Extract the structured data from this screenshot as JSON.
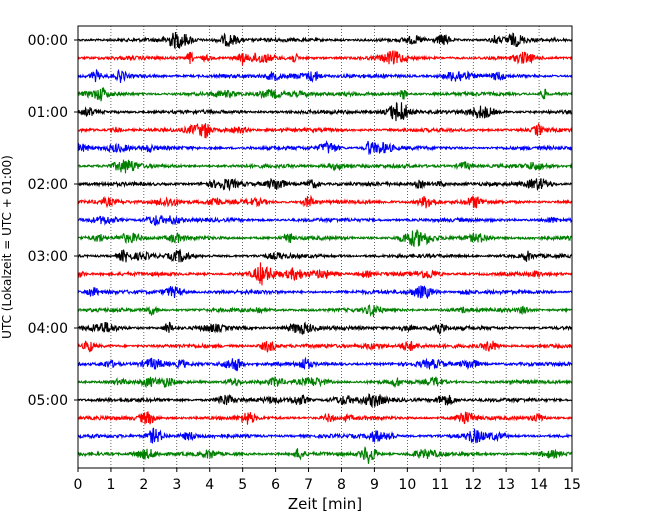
{
  "chart_data": {
    "type": "line",
    "title": "",
    "xlabel": "Zeit  [min]",
    "ylabel": "UTC (Lokalzeit = UTC + 01:00)",
    "xlim": [
      0,
      15
    ],
    "x_ticks": [
      "0",
      "1",
      "2",
      "3",
      "4",
      "5",
      "6",
      "7",
      "8",
      "9",
      "10",
      "11",
      "12",
      "13",
      "14",
      "15"
    ],
    "y_ticks": [
      {
        "label": "00:00",
        "row": 0
      },
      {
        "label": "01:00",
        "row": 4
      },
      {
        "label": "02:00",
        "row": 8
      },
      {
        "label": "03:00",
        "row": 12
      },
      {
        "label": "04:00",
        "row": 16
      },
      {
        "label": "05:00",
        "row": 20
      }
    ],
    "rows_per_hour": 4,
    "row_count": 24,
    "row_duration_min": 15,
    "color_cycle": [
      "#000000",
      "#ff0000",
      "#0000ff",
      "#008000"
    ],
    "grid": "vertical dotted at each minute",
    "legend": "none"
  }
}
